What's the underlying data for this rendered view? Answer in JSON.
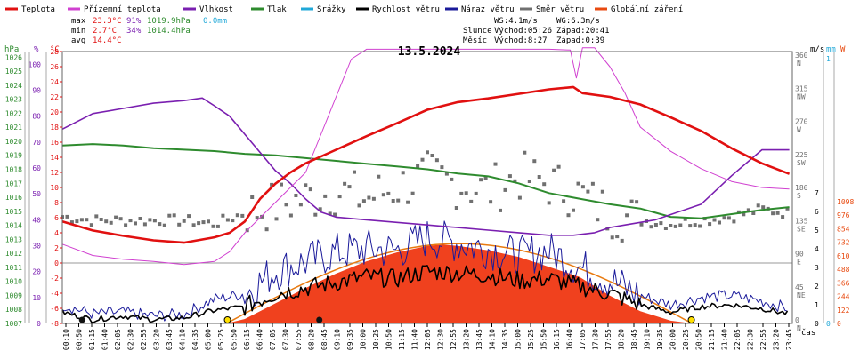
{
  "title": "13.5.2024",
  "legend": [
    {
      "label": "Teplota",
      "color": "#e11010"
    },
    {
      "label": "Přízemní teplota",
      "color": "#d040d0"
    },
    {
      "label": "Vlhkost",
      "color": "#7a1fb0"
    },
    {
      "label": "Tlak",
      "color": "#2e8b2e"
    },
    {
      "label": "Srážky",
      "color": "#20a8d8"
    },
    {
      "label": "Rychlost větru",
      "color": "#000000"
    },
    {
      "label": "Náraz větru",
      "color": "#1a1a9a"
    },
    {
      "label": "Směr větru",
      "color": "#707070"
    },
    {
      "label": "Globální záření",
      "color": "#e84a10"
    }
  ],
  "stats": {
    "max_label": "max",
    "max_temp": "23.3°C",
    "max_hum": "91%",
    "max_press": "1019.9hPa",
    "max_rain": "0.0mm",
    "min_label": "min",
    "min_temp": "2.7°C",
    "min_hum": "34%",
    "min_press": "1014.4hPa",
    "avg_label": "avg",
    "avg_temp": "14.4°C"
  },
  "info": {
    "ws": "WS:4.1m/s",
    "wg": "WG:6.3m/s",
    "sun_label": "Slunce",
    "sun_rise": "Východ:05:26",
    "sun_set": "Západ:20:41",
    "moon_label": "Měsíc",
    "moon_rise": "Východ:8:27",
    "moon_set": "Západ:0:39"
  },
  "axes": {
    "hpa_title": "hPa",
    "pct_title": "%",
    "c_title": "°C",
    "ms_title": "m/s",
    "mm_title": "mm",
    "w_title": "W",
    "hpa_ticks": [
      "1026",
      "1025",
      "1024",
      "1023",
      "1022",
      "1021",
      "1020",
      "1019",
      "1018",
      "1017",
      "1016",
      "1015",
      "1014",
      "1013",
      "1012",
      "1011",
      "1010",
      "1009",
      "1008",
      "1007"
    ],
    "pct_ticks": [
      "100",
      "90",
      "80",
      "70",
      "60",
      "50",
      "40",
      "30",
      "20",
      "10",
      "0"
    ],
    "c_ticks": [
      "28",
      "26",
      "24",
      "22",
      "20",
      "18",
      "16",
      "14",
      "12",
      "10",
      "8",
      "6",
      "4",
      "2",
      "0",
      "-2",
      "-4",
      "-6",
      "-8"
    ],
    "dir_ticks": [
      {
        "deg": "360",
        "lbl": "N",
        "v": 360
      },
      {
        "deg": "315",
        "lbl": "NW",
        "v": 315
      },
      {
        "deg": "270",
        "lbl": "W",
        "v": 270
      },
      {
        "deg": "225",
        "lbl": "SW",
        "v": 225
      },
      {
        "deg": "180",
        "lbl": "S",
        "v": 180
      },
      {
        "deg": "135",
        "lbl": "SE",
        "v": 135
      },
      {
        "deg": "90",
        "lbl": "E",
        "v": 90
      },
      {
        "deg": "45",
        "lbl": "NE",
        "v": 45
      },
      {
        "deg": "0",
        "lbl": "N",
        "v": 0
      }
    ],
    "ms_ticks": [
      "7",
      "6",
      "5",
      "4",
      "3",
      "2",
      "1",
      "0"
    ],
    "mm_ticks": [
      "1",
      "0"
    ],
    "w_ticks": [
      "1098",
      "976",
      "854",
      "732",
      "610",
      "488",
      "366",
      "244",
      "122",
      "0"
    ],
    "x_unit": "čas",
    "time_ticks": [
      "00:10",
      "00:50",
      "01:15",
      "01:40",
      "02:05",
      "02:30",
      "02:55",
      "03:20",
      "03:45",
      "04:10",
      "04:35",
      "05:00",
      "05:25",
      "05:50",
      "06:15",
      "06:40",
      "07:05",
      "07:30",
      "07:55",
      "08:20",
      "08:45",
      "09:10",
      "09:35",
      "10:00",
      "10:25",
      "10:50",
      "11:15",
      "11:40",
      "12:05",
      "12:30",
      "12:55",
      "13:20",
      "13:45",
      "14:10",
      "14:35",
      "15:00",
      "15:25",
      "15:50",
      "16:15",
      "16:40",
      "17:05",
      "17:30",
      "17:55",
      "18:20",
      "18:45",
      "19:10",
      "19:35",
      "20:00",
      "20:25",
      "20:50",
      "21:15",
      "21:40",
      "22:05",
      "22:30",
      "22:55",
      "23:20",
      "23:45"
    ]
  },
  "chart_data": {
    "type": "line",
    "date": "13.5.2024",
    "x_unit": "hours",
    "x_range": [
      0,
      24
    ],
    "series": [
      {
        "name": "Teplota",
        "unit": "°C",
        "color": "#e11010",
        "points": [
          [
            0,
            5.5
          ],
          [
            1,
            4.3
          ],
          [
            2,
            3.6
          ],
          [
            3,
            3.0
          ],
          [
            4,
            2.7
          ],
          [
            5,
            3.4
          ],
          [
            5.5,
            4.0
          ],
          [
            6,
            5.5
          ],
          [
            6.5,
            8.5
          ],
          [
            7,
            10.5
          ],
          [
            7.5,
            12.0
          ],
          [
            8,
            13.2
          ],
          [
            9,
            15.0
          ],
          [
            10,
            16.8
          ],
          [
            11,
            18.5
          ],
          [
            12,
            20.3
          ],
          [
            13,
            21.3
          ],
          [
            14,
            21.8
          ],
          [
            15,
            22.4
          ],
          [
            16,
            23.0
          ],
          [
            16.8,
            23.3
          ],
          [
            17.1,
            22.5
          ],
          [
            18,
            22.0
          ],
          [
            19,
            21.0
          ],
          [
            20,
            19.3
          ],
          [
            21,
            17.5
          ],
          [
            22,
            15.2
          ],
          [
            23,
            13.2
          ],
          [
            23.9,
            11.8
          ]
        ]
      },
      {
        "name": "Přízemní teplota",
        "unit": "°C",
        "color": "#d040d0",
        "points": [
          [
            0,
            2.5
          ],
          [
            1,
            1.0
          ],
          [
            2,
            0.5
          ],
          [
            3,
            0.2
          ],
          [
            4,
            -0.2
          ],
          [
            5,
            0.2
          ],
          [
            5.5,
            1.5
          ],
          [
            6,
            4.0
          ],
          [
            7,
            8.0
          ],
          [
            8,
            12.0
          ],
          [
            8.5,
            17.0
          ],
          [
            9,
            22.0
          ],
          [
            9.5,
            27.0
          ],
          [
            10,
            28.3
          ],
          [
            11,
            28.3
          ],
          [
            12,
            28.3
          ],
          [
            13,
            28.3
          ],
          [
            14,
            28.3
          ],
          [
            15,
            28.3
          ],
          [
            16,
            28.3
          ],
          [
            16.7,
            28.2
          ],
          [
            16.9,
            24.5
          ],
          [
            17.1,
            28.5
          ],
          [
            17.5,
            28.5
          ],
          [
            18,
            26.0
          ],
          [
            18.5,
            22.5
          ],
          [
            19,
            18.0
          ],
          [
            20,
            14.8
          ],
          [
            21,
            12.5
          ],
          [
            22,
            10.8
          ],
          [
            23,
            10.0
          ],
          [
            23.9,
            9.8
          ]
        ]
      },
      {
        "name": "Vlhkost",
        "unit": "%",
        "color": "#7a1fb0",
        "points": [
          [
            0,
            75
          ],
          [
            1,
            81
          ],
          [
            2,
            83
          ],
          [
            3,
            85
          ],
          [
            4,
            86
          ],
          [
            4.6,
            87
          ],
          [
            5,
            84
          ],
          [
            5.5,
            80
          ],
          [
            6,
            73
          ],
          [
            6.5,
            66
          ],
          [
            7,
            59
          ],
          [
            7.5,
            54
          ],
          [
            8,
            48
          ],
          [
            8.5,
            43
          ],
          [
            9,
            41
          ],
          [
            10,
            40
          ],
          [
            11,
            39
          ],
          [
            12,
            38
          ],
          [
            13,
            37
          ],
          [
            14,
            36
          ],
          [
            15,
            35
          ],
          [
            16,
            34
          ],
          [
            16.8,
            34
          ],
          [
            17.5,
            35
          ],
          [
            18,
            37
          ],
          [
            18.5,
            38
          ],
          [
            19,
            39
          ],
          [
            19.5,
            40
          ],
          [
            20,
            42
          ],
          [
            21,
            46
          ],
          [
            22,
            57
          ],
          [
            23,
            67
          ],
          [
            23.9,
            67
          ]
        ]
      },
      {
        "name": "Tlak",
        "unit": "hPa",
        "color": "#2e8b2e",
        "points": [
          [
            0,
            1019.7
          ],
          [
            1,
            1019.8
          ],
          [
            2,
            1019.7
          ],
          [
            3,
            1019.5
          ],
          [
            4,
            1019.4
          ],
          [
            5,
            1019.3
          ],
          [
            6,
            1019.1
          ],
          [
            7,
            1019.0
          ],
          [
            8,
            1018.8
          ],
          [
            9,
            1018.6
          ],
          [
            10,
            1018.4
          ],
          [
            11,
            1018.2
          ],
          [
            12,
            1018.0
          ],
          [
            13,
            1017.7
          ],
          [
            14,
            1017.5
          ],
          [
            15,
            1017.0
          ],
          [
            16,
            1016.3
          ],
          [
            17,
            1015.9
          ],
          [
            18,
            1015.5
          ],
          [
            19,
            1015.2
          ],
          [
            19.5,
            1014.9
          ],
          [
            20,
            1014.6
          ],
          [
            21,
            1014.5
          ],
          [
            22,
            1014.8
          ],
          [
            23,
            1015.1
          ],
          [
            23.9,
            1015.3
          ]
        ]
      },
      {
        "name": "Srážky",
        "unit": "mm",
        "color": "#20a8d8",
        "total": 0.0
      },
      {
        "name": "Rychlost větru",
        "unit": "m/s",
        "color": "#000000",
        "points": [
          [
            0,
            0.6
          ],
          [
            1,
            0.2
          ],
          [
            2,
            0.4
          ],
          [
            3,
            0.2
          ],
          [
            4,
            0.3
          ],
          [
            5,
            0.7
          ],
          [
            6,
            0.9
          ],
          [
            7,
            1.6
          ],
          [
            8,
            1.9
          ],
          [
            9,
            2.2
          ],
          [
            10,
            2.5
          ],
          [
            11,
            2.4
          ],
          [
            12,
            2.8
          ],
          [
            13,
            2.7
          ],
          [
            14,
            2.6
          ],
          [
            15,
            2.3
          ],
          [
            16,
            2.4
          ],
          [
            17,
            2.0
          ],
          [
            18,
            1.6
          ],
          [
            19,
            1.0
          ],
          [
            20,
            0.6
          ],
          [
            21,
            0.9
          ],
          [
            22,
            1.0
          ],
          [
            23,
            0.8
          ],
          [
            23.9,
            0.5
          ]
        ]
      },
      {
        "name": "Náraz větru",
        "unit": "m/s",
        "color": "#1a1a9a",
        "points": [
          [
            0,
            1.0
          ],
          [
            1,
            0.5
          ],
          [
            2,
            0.6
          ],
          [
            3,
            0.4
          ],
          [
            4,
            0.5
          ],
          [
            5,
            1.3
          ],
          [
            6,
            1.6
          ],
          [
            7,
            2.8
          ],
          [
            8,
            3.3
          ],
          [
            9,
            3.8
          ],
          [
            10,
            4.0
          ],
          [
            11,
            3.9
          ],
          [
            12,
            4.6
          ],
          [
            13,
            4.3
          ],
          [
            14,
            4.0
          ],
          [
            15,
            3.6
          ],
          [
            16,
            3.9
          ],
          [
            17,
            3.0
          ],
          [
            18,
            2.3
          ],
          [
            19,
            1.5
          ],
          [
            20,
            1.0
          ],
          [
            21,
            1.4
          ],
          [
            22,
            1.5
          ],
          [
            23,
            1.2
          ],
          [
            23.9,
            0.8
          ]
        ]
      },
      {
        "name": "Směr větru",
        "unit": "°",
        "color": "#707070",
        "points": [
          [
            0,
            145
          ],
          [
            1,
            140
          ],
          [
            2,
            140
          ],
          [
            3,
            140
          ],
          [
            4,
            140
          ],
          [
            5,
            135
          ],
          [
            6,
            150
          ],
          [
            7,
            160
          ],
          [
            8,
            170
          ],
          [
            9,
            180
          ],
          [
            10,
            170
          ],
          [
            11,
            185
          ],
          [
            12,
            200
          ],
          [
            13,
            190
          ],
          [
            14,
            180
          ],
          [
            15,
            200
          ],
          [
            16,
            190
          ],
          [
            17,
            175
          ],
          [
            18,
            150
          ],
          [
            19,
            140
          ],
          [
            20,
            135
          ],
          [
            21,
            140
          ],
          [
            22,
            145
          ],
          [
            23,
            155
          ],
          [
            23.9,
            150
          ]
        ]
      },
      {
        "name": "Globální záření",
        "unit": "W",
        "color": "#e84a10",
        "points": [
          [
            5.4,
            0
          ],
          [
            6,
            40
          ],
          [
            7,
            180
          ],
          [
            8,
            320
          ],
          [
            9,
            450
          ],
          [
            10,
            560
          ],
          [
            11,
            640
          ],
          [
            12,
            700
          ],
          [
            12.5,
            710
          ],
          [
            13,
            700
          ],
          [
            14,
            660
          ],
          [
            15,
            600
          ],
          [
            16,
            510
          ],
          [
            17,
            420
          ],
          [
            18,
            250
          ],
          [
            19,
            110
          ],
          [
            20,
            25
          ],
          [
            20.7,
            0
          ]
        ]
      }
    ],
    "sunrise": "05:26",
    "sunset": "20:41",
    "moonrise": "8:27",
    "moonset": "0:39"
  }
}
